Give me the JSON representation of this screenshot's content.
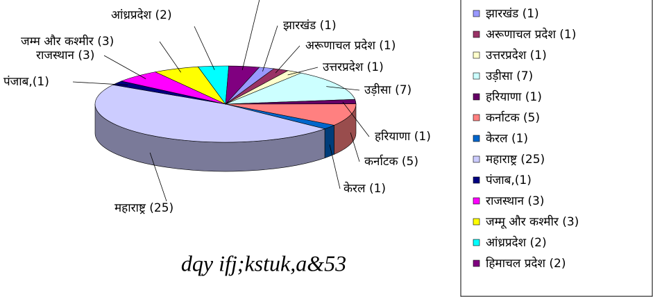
{
  "chart_data": {
    "type": "pie",
    "caption": "dqy ifj;kstuk,a&53",
    "categories": [
      "झारखंड (1)",
      "अरूणाचल प्रदेश (1)",
      "उत्तरप्रदेश (1)",
      "उड़ीसा (7)",
      "हरियाणा (1)",
      "कर्नाटक (5)",
      "केरल (1)",
      "महाराष्ट्र (25)",
      "पंजाब,(1)",
      "राजस्थान (3)",
      "जम्मू और कश्मीर (3)",
      "आंध्रप्रदेश (2)",
      "हिमाचल प्रदेश (2)"
    ],
    "values": [
      1,
      1,
      1,
      7,
      1,
      5,
      1,
      25,
      1,
      3,
      3,
      2,
      2
    ],
    "value_labels": [
      "झारखंड (1)",
      "अरूणाचल प्रदेश (1)",
      "उत्तरप्रदेश (1)",
      "उड़ीसा (7)",
      "हरियाणा (1)",
      "कर्नाटक (5)",
      "केरल (1)",
      "महाराष्ट्र (25)",
      "पंजाब,(1)",
      "राजस्थान (3)",
      "जम्म और कश्मीर (3)",
      "आंध्रप्रदेश (2)",
      null
    ],
    "colors": [
      "#9999ff",
      "#993366",
      "#ffffcc",
      "#ccffff",
      "#660066",
      "#ff8080",
      "#0066cc",
      "#ccccff",
      "#000080",
      "#ff00ff",
      "#ffff00",
      "#00ffff",
      "#800080"
    ]
  }
}
